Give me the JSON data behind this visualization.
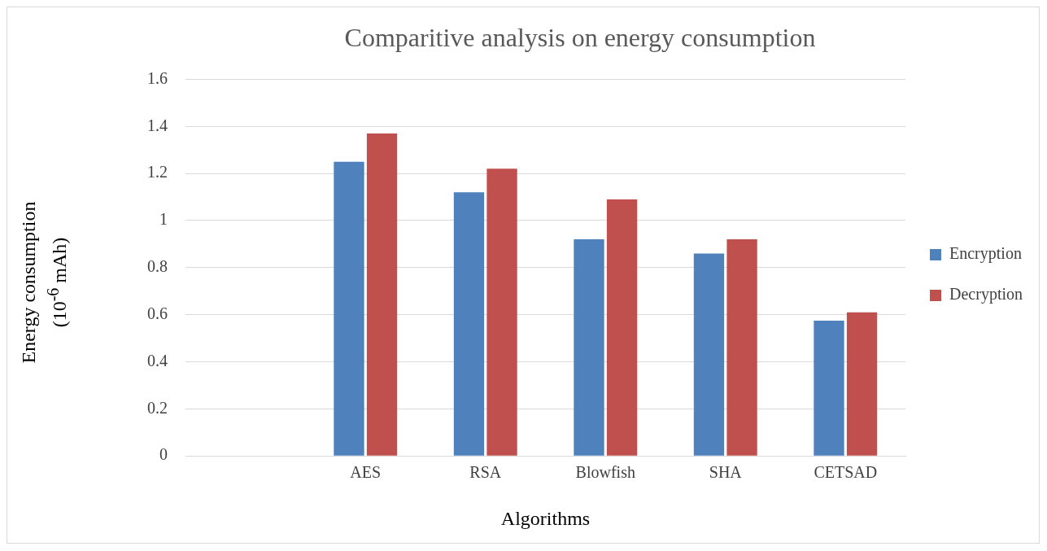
{
  "chart_data": {
    "type": "bar",
    "title": "Comparitive analysis on energy consumption",
    "xlabel": "Algorithms",
    "ylabel": "Energy consumption\n(10$^{-6}$ mAh)",
    "categories": [
      null,
      "AES",
      "RSA",
      "Blowfish",
      "SHA",
      "CETSAD"
    ],
    "series": [
      {
        "name": "Encryption",
        "color": "#4f81bd",
        "values": [
          null,
          1.25,
          1.12,
          0.92,
          0.86,
          0.575
        ]
      },
      {
        "name": "Decryption",
        "color": "#c0504d",
        "values": [
          null,
          1.37,
          1.22,
          1.09,
          0.92,
          0.61
        ]
      }
    ],
    "ylim": [
      0,
      1.6
    ],
    "yticks": [
      0,
      0.2,
      0.4,
      0.6,
      0.8,
      1,
      1.2,
      1.4,
      1.6
    ],
    "grid": "y",
    "legend": "right"
  }
}
